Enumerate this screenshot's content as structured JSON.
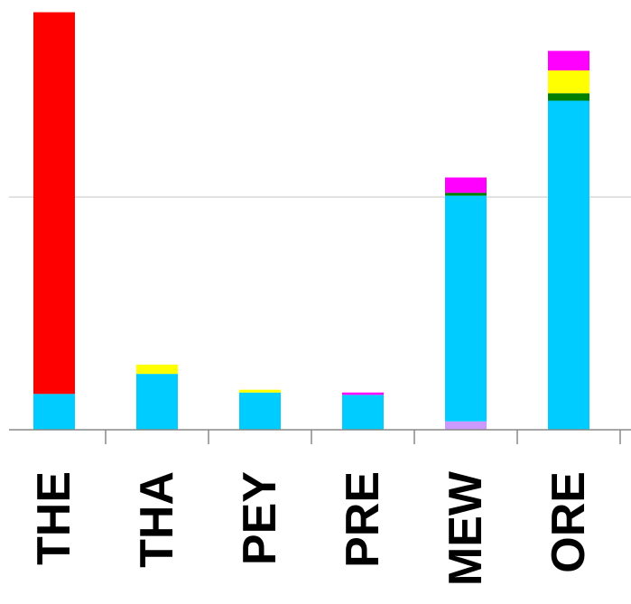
{
  "chart_data": {
    "type": "bar",
    "stacked": true,
    "categories": [
      "THE",
      "THA",
      "PEY",
      "PRE",
      "MEW",
      "ORE"
    ],
    "ylim": [
      0,
      90
    ],
    "grid": true,
    "gridlines": [
      50
    ],
    "legend": "none",
    "series": [
      {
        "color": "#cc99ff",
        "values": [
          0,
          0,
          0,
          0,
          1.8,
          0
        ]
      },
      {
        "color": "#00ccff",
        "values": [
          7.7,
          12,
          8,
          7.5,
          48.5,
          70.7
        ]
      },
      {
        "color": "#ff0000",
        "values": [
          82,
          0,
          0,
          0,
          0,
          0
        ]
      },
      {
        "color": "#008000",
        "values": [
          0,
          0,
          0,
          0,
          0.6,
          1.6
        ]
      },
      {
        "color": "#ffff00",
        "values": [
          0,
          2,
          0.6,
          0,
          0,
          4.9
        ]
      },
      {
        "color": "#ff00ff",
        "values": [
          0,
          0,
          0,
          0.5,
          3.3,
          4.2
        ]
      }
    ]
  }
}
